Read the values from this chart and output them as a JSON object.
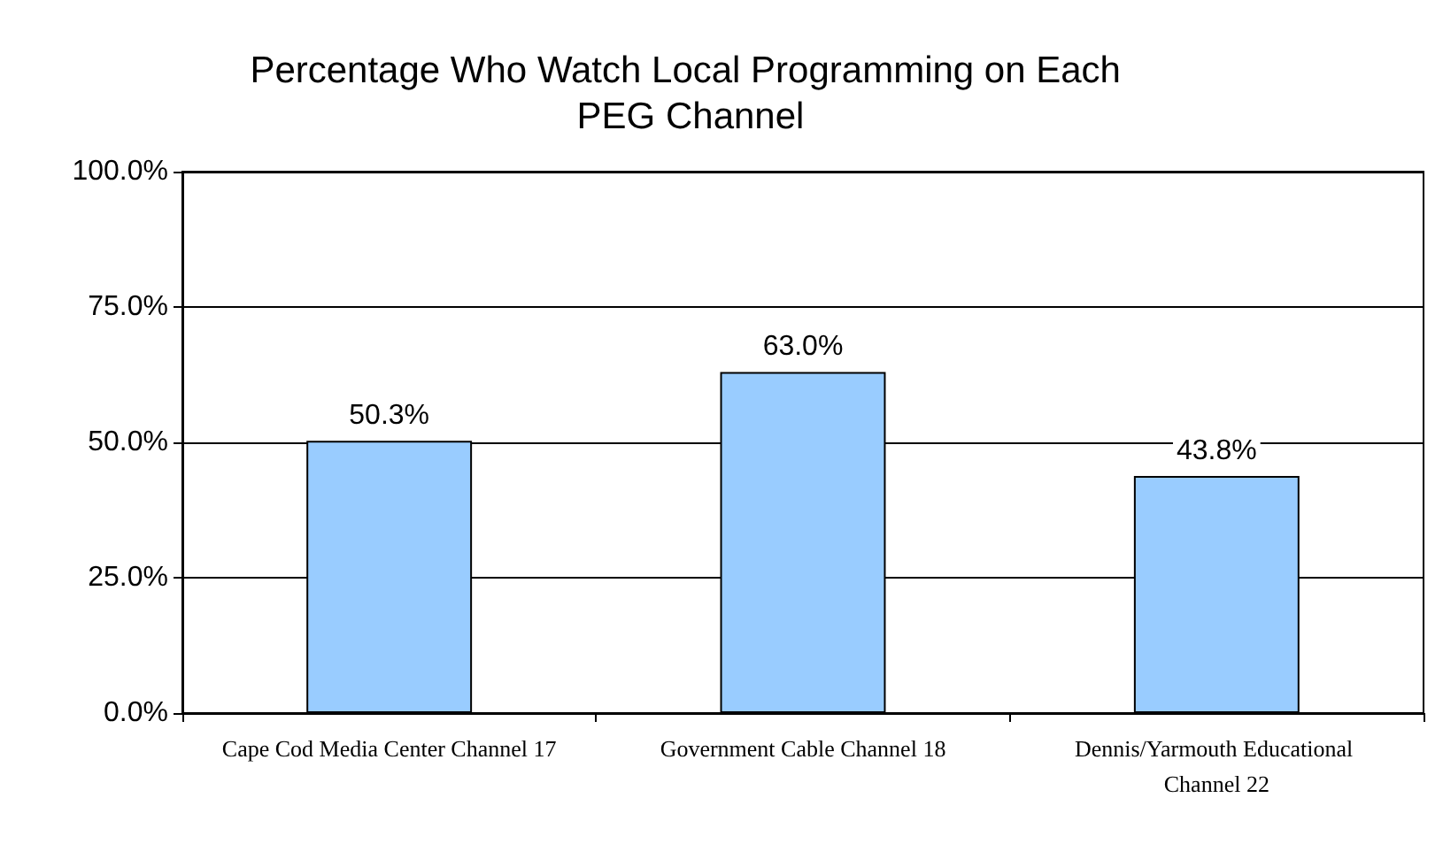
{
  "chart_data": {
    "type": "bar",
    "title": "Percentage Who Watch Local Programming on Each PEG Channel",
    "categories": [
      "Cape Cod Media Center Channel 17",
      "Government Cable Channel 18",
      "Dennis/Yarmouth Educational Channel 22"
    ],
    "values": [
      50.3,
      63.0,
      43.8
    ],
    "color": "#99ccff",
    "value_labels": [
      "50.3%",
      "63.0%",
      "43.8%"
    ],
    "ylim": [
      0,
      100
    ],
    "yticks": [
      {
        "value": 0,
        "label": "0.0%"
      },
      {
        "value": 25,
        "label": "25.0%"
      },
      {
        "value": 50,
        "label": "50.0%"
      },
      {
        "value": 75,
        "label": "75.0%"
      },
      {
        "value": 100,
        "label": "100.0%"
      }
    ],
    "grid": "y"
  }
}
